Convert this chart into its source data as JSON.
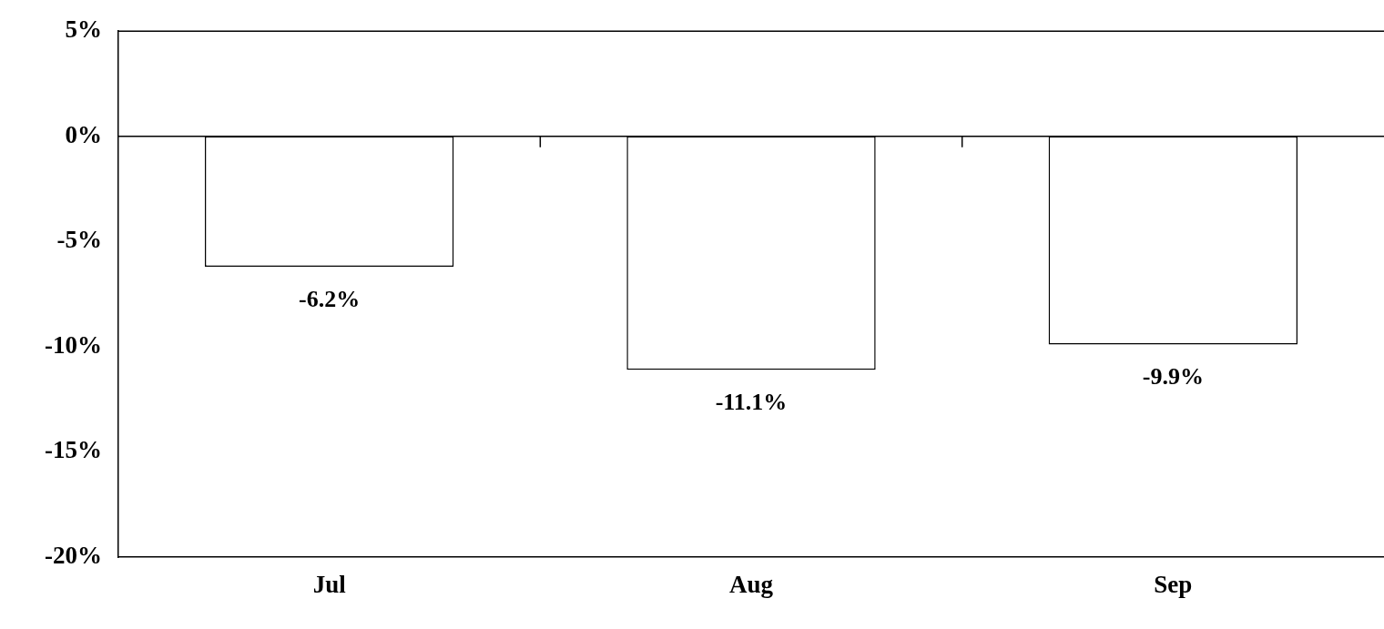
{
  "chart_data": {
    "type": "bar",
    "categories": [
      "Jul",
      "Aug",
      "Sep"
    ],
    "values": [
      -6.2,
      -11.1,
      -9.9
    ],
    "value_labels": [
      "-6.2%",
      "-11.1%",
      "-9.9%"
    ],
    "color": "#ffffff",
    "ylim": [
      -20,
      5
    ],
    "yticks": [
      {
        "value": 5,
        "label": "5%"
      },
      {
        "value": 0,
        "label": "0%"
      },
      {
        "value": -5,
        "label": "-5%"
      },
      {
        "value": -10,
        "label": "-10%"
      },
      {
        "value": -15,
        "label": "-15%"
      },
      {
        "value": -20,
        "label": "-20%"
      }
    ],
    "ref_lines": [
      {
        "axis": "y",
        "value": 0,
        "color": "#000000"
      }
    ],
    "grid": false,
    "legend": false
  }
}
